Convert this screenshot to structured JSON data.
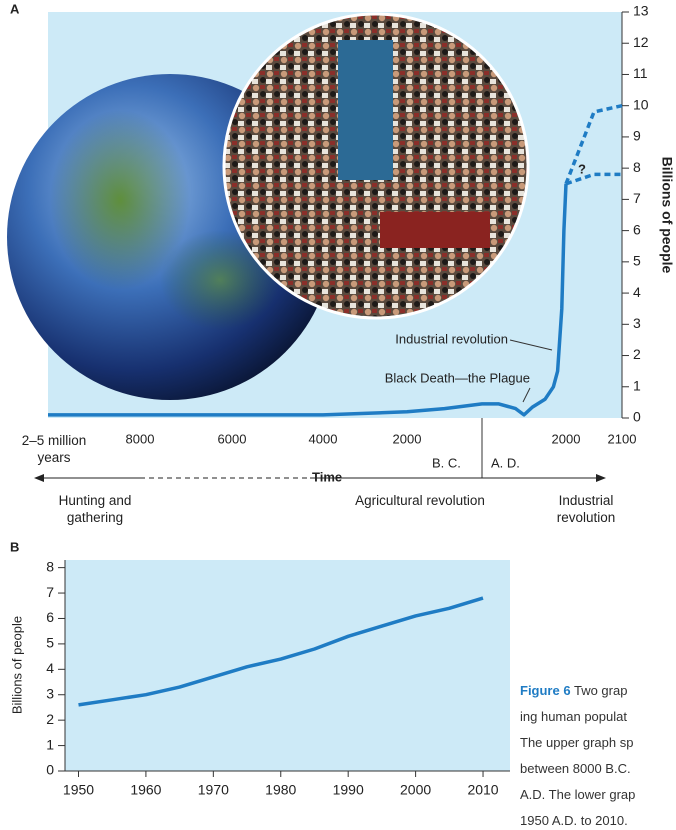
{
  "chart_data": [
    {
      "type": "line",
      "panel": "A",
      "y_label": "Billions of people",
      "x_start_label": "2–5 million years",
      "x": [
        -10000,
        -8000,
        -6000,
        -4000,
        -2000,
        -1000,
        0,
        400,
        800,
        1000,
        1200,
        1500,
        1700,
        1800,
        1900,
        1950,
        2000,
        2050,
        2100
      ],
      "xlim": [
        -10000,
        2100
      ],
      "xticks": [
        {
          "value": -8000,
          "label": "8000"
        },
        {
          "value": -6000,
          "label": "6000"
        },
        {
          "value": -4000,
          "label": "4000"
        },
        {
          "value": -2000,
          "label": "2000"
        },
        2000,
        2100
      ],
      "ylim": [
        0,
        13
      ],
      "yticks": [
        0,
        1,
        2,
        3,
        4,
        5,
        6,
        7,
        8,
        9,
        10,
        11,
        12,
        13
      ],
      "series": [
        {
          "color": "#1f7cc4",
          "values": [
            0.1,
            0.1,
            0.1,
            0.1,
            0.2,
            0.3,
            0.45,
            0.45,
            0.3,
            0.1,
            0.35,
            0.6,
            1.0,
            1.5,
            3.5,
            6,
            7.5,
            null,
            null
          ]
        },
        {
          "color": "#1f7cc4",
          "dashed": true,
          "values": [
            null,
            null,
            null,
            null,
            null,
            null,
            null,
            null,
            null,
            null,
            null,
            null,
            null,
            null,
            null,
            null,
            7.5,
            9.8,
            10
          ]
        },
        {
          "color": "#1f7cc4",
          "dashed": true,
          "values": [
            null,
            null,
            null,
            null,
            null,
            null,
            null,
            null,
            null,
            null,
            null,
            null,
            null,
            null,
            null,
            null,
            7.5,
            7.8,
            7.8
          ]
        }
      ],
      "annotations": [
        "?",
        "Industrial revolution",
        "Black Death—the Plague",
        "Time",
        "B. C.",
        "A. D."
      ],
      "eras": [
        "Hunting and gathering",
        "Agricultural revolution",
        "Industrial revolution"
      ]
    },
    {
      "type": "line",
      "panel": "B",
      "y_label": "Billions of people",
      "x": [
        1950,
        1955,
        1960,
        1965,
        1970,
        1975,
        1980,
        1985,
        1990,
        1995,
        2000,
        2005,
        2010
      ],
      "xlim": [
        1948,
        2014
      ],
      "xticks": [
        1950,
        1960,
        1970,
        1980,
        1990,
        2000,
        2010
      ],
      "ylim": [
        0,
        8.3
      ],
      "yticks": [
        0,
        1,
        2,
        3,
        4,
        5,
        6,
        7,
        8
      ],
      "series": [
        {
          "color": "#1f7cc4",
          "values": [
            2.6,
            2.8,
            3.0,
            3.3,
            3.7,
            4.1,
            4.4,
            4.8,
            5.3,
            5.7,
            6.1,
            6.4,
            6.8
          ]
        }
      ]
    }
  ],
  "caption": {
    "label": "Figure 6",
    "lines": [
      "Two grap",
      "ing human populat",
      "The upper graph sp",
      "between 8000 B.C.",
      "A.D. The lower grap",
      "1950 A.D. to 2010."
    ]
  }
}
